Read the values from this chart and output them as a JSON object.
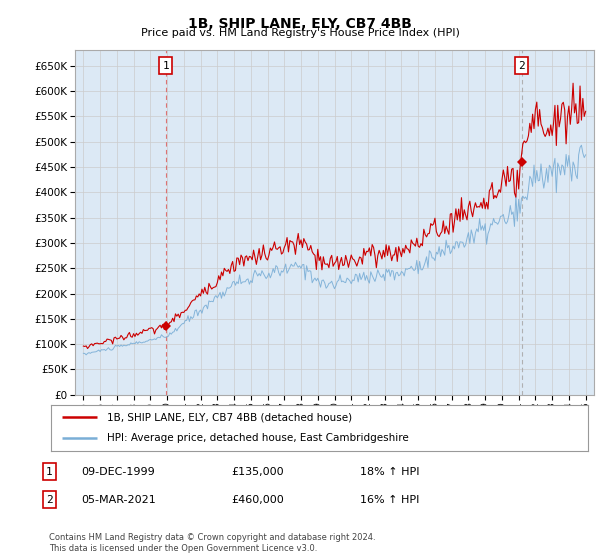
{
  "title": "1B, SHIP LANE, ELY, CB7 4BB",
  "subtitle": "Price paid vs. HM Land Registry's House Price Index (HPI)",
  "ylim": [
    0,
    680000
  ],
  "yticks": [
    0,
    50000,
    100000,
    150000,
    200000,
    250000,
    300000,
    350000,
    400000,
    450000,
    500000,
    550000,
    600000,
    650000
  ],
  "x_start_year": 1995,
  "x_end_year": 2025,
  "sale1_year": 1999.92,
  "sale1_price": 135000,
  "sale1_label": "1",
  "sale2_year": 2021.17,
  "sale2_price": 460000,
  "sale2_label": "2",
  "line_color_property": "#cc0000",
  "line_color_hpi": "#7aaed6",
  "vline1_color": "#dd6666",
  "vline2_color": "#aaaaaa",
  "grid_color": "#cccccc",
  "plot_bg_color": "#dce9f5",
  "background_color": "#ffffff",
  "legend_label_property": "1B, SHIP LANE, ELY, CB7 4BB (detached house)",
  "legend_label_hpi": "HPI: Average price, detached house, East Cambridgeshire",
  "footer": "Contains HM Land Registry data © Crown copyright and database right 2024.\nThis data is licensed under the Open Government Licence v3.0.",
  "table_rows": [
    {
      "label": "1",
      "date": "09-DEC-1999",
      "price": "£135,000",
      "hpi": "18% ↑ HPI"
    },
    {
      "label": "2",
      "date": "05-MAR-2021",
      "price": "£460,000",
      "hpi": "16% ↑ HPI"
    }
  ]
}
